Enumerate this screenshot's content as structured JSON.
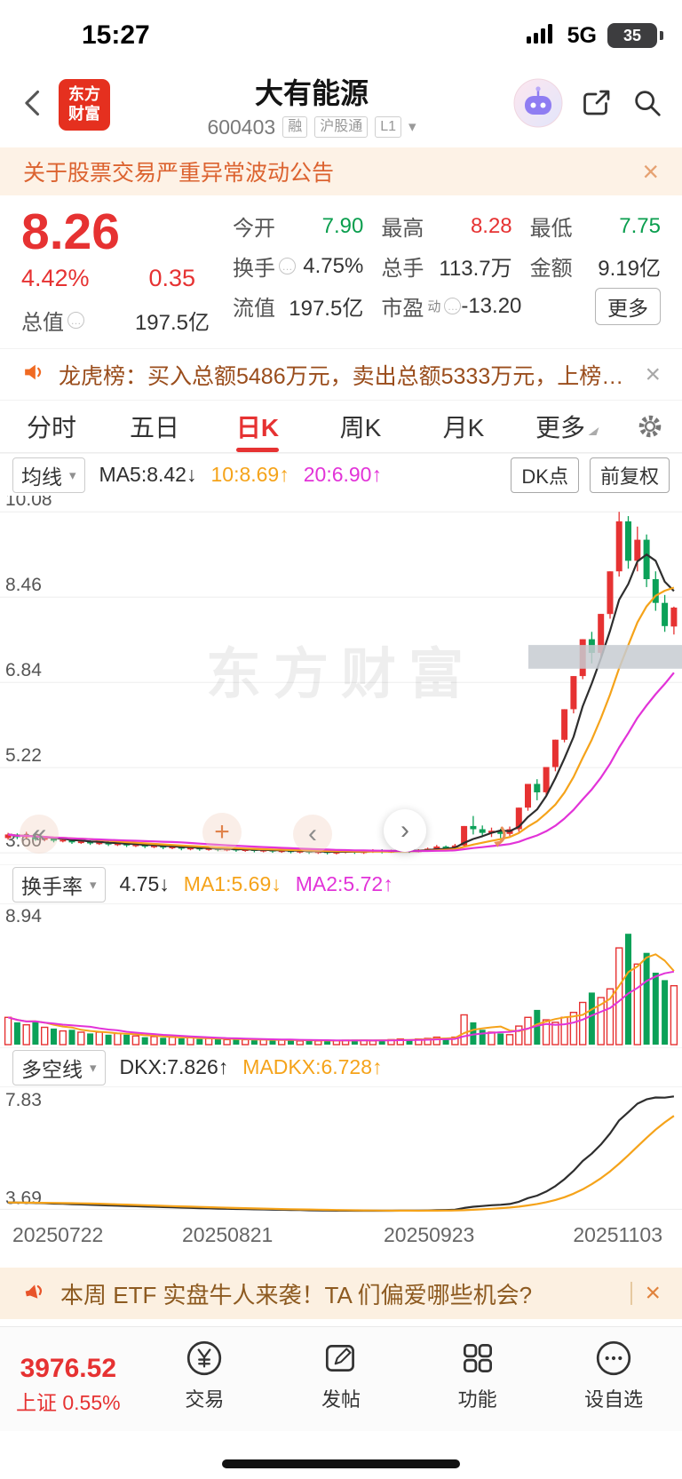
{
  "status_bar": {
    "time": "15:27",
    "network": "5G",
    "battery": "35"
  },
  "header": {
    "title": "大有能源",
    "code": "600403",
    "badges": [
      "融",
      "沪股通",
      "L1"
    ],
    "logo_line1": "东方",
    "logo_line2": "财富"
  },
  "icons": {
    "close": "×",
    "caret_down": "▾",
    "ellipsis": "…"
  },
  "notice": {
    "text": "关于股票交易严重异常波动公告"
  },
  "quote": {
    "price": "8.26",
    "change_pct": "4.42%",
    "change_val": "0.35",
    "mktcap_label": "总值",
    "mktcap_value": "197.5亿",
    "grid": [
      {
        "name": "quote-open",
        "label": "今开",
        "value": "7.90",
        "color": "green"
      },
      {
        "name": "quote-high",
        "label": "最高",
        "value": "8.28",
        "color": "red"
      },
      {
        "name": "quote-low",
        "label": "最低",
        "value": "7.75",
        "color": "green"
      },
      {
        "name": "quote-turnover",
        "label": "换手",
        "value": "4.75%",
        "color": "dark",
        "info": true
      },
      {
        "name": "quote-volume",
        "label": "总手",
        "value": "113.7万",
        "color": "dark"
      },
      {
        "name": "quote-amount",
        "label": "金额",
        "value": "9.19亿",
        "color": "dark"
      },
      {
        "name": "quote-float-cap",
        "label": "流值",
        "value": "197.5亿",
        "color": "dark"
      },
      {
        "name": "quote-pe",
        "label": "市盈",
        "sub": "动",
        "value": "-13.20",
        "color": "dark",
        "info": true
      },
      {
        "name": "quote-more",
        "label": "更多",
        "is_button": true
      }
    ]
  },
  "lhb": {
    "text": "龙虎榜：买入总额5486万元，卖出总额5333万元，上榜…"
  },
  "tabs": {
    "items": [
      {
        "name": "tab-minute",
        "label": "分时"
      },
      {
        "name": "tab-five-day",
        "label": "五日"
      },
      {
        "name": "tab-daily-k",
        "label": "日K",
        "active": true
      },
      {
        "name": "tab-weekly-k",
        "label": "周K"
      },
      {
        "name": "tab-monthly-k",
        "label": "月K"
      },
      {
        "name": "tab-more",
        "label": "更多",
        "corner": true
      }
    ]
  },
  "kline_toolbar": {
    "dropdown": "均线",
    "ma5": "MA5:8.42↓",
    "ma10": "10:8.69↑",
    "ma20": "20:6.90↑",
    "dk_button": "DK点",
    "fq_button": "前复权"
  },
  "volume_toolbar": {
    "dropdown": "换手率",
    "value": "4.75↓",
    "ma1": "MA1:5.69↓",
    "ma2": "MA2:5.72↑"
  },
  "dkx_toolbar": {
    "dropdown": "多空线",
    "dkx": "DKX:7.826↑",
    "madkx": "MADKX:6.728↑"
  },
  "watermark": "东方财富",
  "chart_buttons": {
    "double_left": "«",
    "plus": "+",
    "left": "‹",
    "right": "›"
  },
  "chart_data": {
    "type": "candlestick",
    "title": "大有能源 600403 日K 前复权",
    "x_labels": [
      "20250722",
      "20250821",
      "20250923",
      "20251103"
    ],
    "main_grid": [
      10.08,
      8.46,
      6.84,
      5.22,
      3.6
    ],
    "main_range": [
      3.45,
      10.32
    ],
    "gap_band": {
      "x_frac": 0.775,
      "low": 7.1,
      "high": 7.55
    },
    "vol_axis_label": "8.94",
    "vol_range": [
      0,
      9.6
    ],
    "dkx_labels": {
      "top": "7.83",
      "bottom": "3.69"
    },
    "dkx_range": [
      3.5,
      8.1
    ],
    "up_color": "#e63232",
    "down_color": "#0ba158",
    "ma_colors": {
      "ma5": "#2e2e2e",
      "ma10": "#f5a31a",
      "ma20": "#e233d8"
    },
    "candles": [
      [
        3.88,
        3.95,
        3.85,
        3.98
      ],
      [
        3.95,
        3.9,
        3.86,
        3.97
      ],
      [
        3.9,
        3.93,
        3.87,
        4.0
      ],
      [
        3.93,
        3.86,
        3.83,
        3.94
      ],
      [
        3.86,
        3.88,
        3.82,
        3.91
      ],
      [
        3.88,
        3.83,
        3.8,
        3.9
      ],
      [
        3.83,
        3.85,
        3.8,
        3.88
      ],
      [
        3.85,
        3.8,
        3.77,
        3.87
      ],
      [
        3.8,
        3.82,
        3.77,
        3.85
      ],
      [
        3.82,
        3.78,
        3.75,
        3.84
      ],
      [
        3.78,
        3.8,
        3.75,
        3.83
      ],
      [
        3.8,
        3.76,
        3.73,
        3.82
      ],
      [
        3.76,
        3.78,
        3.73,
        3.81
      ],
      [
        3.78,
        3.74,
        3.71,
        3.8
      ],
      [
        3.74,
        3.76,
        3.71,
        3.79
      ],
      [
        3.76,
        3.72,
        3.69,
        3.78
      ],
      [
        3.72,
        3.74,
        3.69,
        3.77
      ],
      [
        3.74,
        3.7,
        3.67,
        3.76
      ],
      [
        3.7,
        3.72,
        3.67,
        3.75
      ],
      [
        3.72,
        3.68,
        3.65,
        3.74
      ],
      [
        3.68,
        3.7,
        3.65,
        3.73
      ],
      [
        3.7,
        3.67,
        3.64,
        3.72
      ],
      [
        3.67,
        3.69,
        3.64,
        3.71
      ],
      [
        3.69,
        3.66,
        3.63,
        3.71
      ],
      [
        3.66,
        3.68,
        3.63,
        3.7
      ],
      [
        3.68,
        3.65,
        3.62,
        3.7
      ],
      [
        3.65,
        3.67,
        3.62,
        3.69
      ],
      [
        3.67,
        3.64,
        3.61,
        3.69
      ],
      [
        3.64,
        3.66,
        3.61,
        3.68
      ],
      [
        3.66,
        3.63,
        3.6,
        3.68
      ],
      [
        3.63,
        3.65,
        3.6,
        3.67
      ],
      [
        3.65,
        3.62,
        3.59,
        3.67
      ],
      [
        3.62,
        3.64,
        3.59,
        3.66
      ],
      [
        3.64,
        3.61,
        3.58,
        3.66
      ],
      [
        3.61,
        3.63,
        3.58,
        3.65
      ],
      [
        3.63,
        3.6,
        3.57,
        3.65
      ],
      [
        3.6,
        3.62,
        3.57,
        3.64
      ],
      [
        3.62,
        3.64,
        3.59,
        3.66
      ],
      [
        3.64,
        3.61,
        3.58,
        3.66
      ],
      [
        3.61,
        3.63,
        3.58,
        3.65
      ],
      [
        3.63,
        3.65,
        3.6,
        3.67
      ],
      [
        3.65,
        3.62,
        3.59,
        3.67
      ],
      [
        3.62,
        3.64,
        3.6,
        3.66
      ],
      [
        3.64,
        3.66,
        3.61,
        3.68
      ],
      [
        3.66,
        3.63,
        3.6,
        3.68
      ],
      [
        3.63,
        3.65,
        3.61,
        3.67
      ],
      [
        3.65,
        3.68,
        3.62,
        3.7
      ],
      [
        3.68,
        3.72,
        3.66,
        3.75
      ],
      [
        3.72,
        3.7,
        3.67,
        3.74
      ],
      [
        3.7,
        3.74,
        3.68,
        3.77
      ],
      [
        3.74,
        4.11,
        3.72,
        4.11
      ],
      [
        4.11,
        4.05,
        3.95,
        4.3
      ],
      [
        4.05,
        3.98,
        3.92,
        4.12
      ],
      [
        3.98,
        4.02,
        3.9,
        4.08
      ],
      [
        4.02,
        3.96,
        3.88,
        4.06
      ],
      [
        3.96,
        4.05,
        3.92,
        4.1
      ],
      [
        4.05,
        4.46,
        4.0,
        4.46
      ],
      [
        4.46,
        4.91,
        4.4,
        4.91
      ],
      [
        4.91,
        4.75,
        4.6,
        5.0
      ],
      [
        4.75,
        5.23,
        4.7,
        5.23
      ],
      [
        5.23,
        5.75,
        5.15,
        5.75
      ],
      [
        5.75,
        6.33,
        5.7,
        6.33
      ],
      [
        6.33,
        6.96,
        6.25,
        6.96
      ],
      [
        6.96,
        7.66,
        6.9,
        7.66
      ],
      [
        7.66,
        7.4,
        7.2,
        7.8
      ],
      [
        7.4,
        8.14,
        7.3,
        8.14
      ],
      [
        8.14,
        8.95,
        8.05,
        8.95
      ],
      [
        8.95,
        9.9,
        8.85,
        10.08
      ],
      [
        9.9,
        9.15,
        9.0,
        10.0
      ],
      [
        9.15,
        9.55,
        8.95,
        9.8
      ],
      [
        9.55,
        8.8,
        8.65,
        9.65
      ],
      [
        8.8,
        8.35,
        8.2,
        8.95
      ],
      [
        8.35,
        7.91,
        7.8,
        8.5
      ],
      [
        7.9,
        8.26,
        7.75,
        8.28
      ]
    ],
    "volumes": [
      2.2,
      1.8,
      1.6,
      1.9,
      1.4,
      1.3,
      1.1,
      1.2,
      1.0,
      0.9,
      1.0,
      0.8,
      0.9,
      0.8,
      0.7,
      0.6,
      0.65,
      0.55,
      0.6,
      0.5,
      0.55,
      0.45,
      0.5,
      0.45,
      0.4,
      0.45,
      0.4,
      0.35,
      0.4,
      0.35,
      0.4,
      0.35,
      0.3,
      0.35,
      0.3,
      0.35,
      0.3,
      0.35,
      0.4,
      0.35,
      0.3,
      0.35,
      0.4,
      0.45,
      0.4,
      0.45,
      0.5,
      0.6,
      0.55,
      0.6,
      2.4,
      1.8,
      1.2,
      1.0,
      0.9,
      0.8,
      1.5,
      2.2,
      2.8,
      2.0,
      1.8,
      2.2,
      2.6,
      3.4,
      4.2,
      3.8,
      4.5,
      7.8,
      8.94,
      6.5,
      7.4,
      5.8,
      5.2,
      4.75
    ]
  },
  "banner": {
    "text": "本周 ETF 实盘牛人来袭！TA 们偏爱哪些机会?"
  },
  "nav": {
    "index": {
      "value": "3976.52",
      "label": "上证",
      "change": "0.55%"
    },
    "items": [
      {
        "name": "nav-trade",
        "label": "交易",
        "icon": "yen-circle"
      },
      {
        "name": "nav-post",
        "label": "发帖",
        "icon": "compose"
      },
      {
        "name": "nav-features",
        "label": "功能",
        "icon": "grid"
      },
      {
        "name": "nav-watchlist",
        "label": "设自选",
        "icon": "watchlist-dots"
      }
    ]
  }
}
